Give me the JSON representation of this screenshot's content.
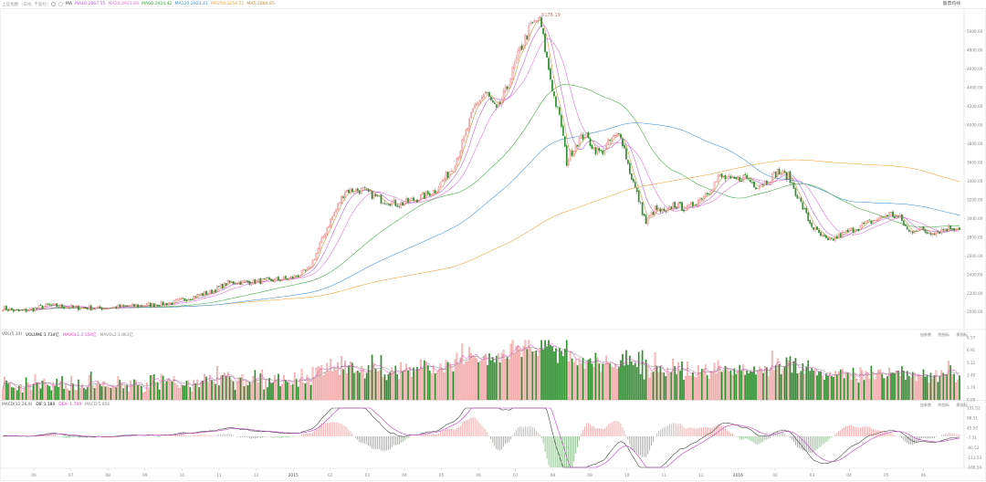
{
  "header": {
    "title": "上证指数",
    "adjust": "(日线, 不复权)",
    "ma_label": "MA",
    "ma_items": [
      {
        "label": "MA10:2867.55",
        "color": "#b65ad6"
      },
      {
        "label": "MA20:2923.69",
        "color": "#e46ad0"
      },
      {
        "label": "MA60:2924.42",
        "color": "#39a640"
      },
      {
        "label": "MA120:2923.41",
        "color": "#3c8fd8"
      },
      {
        "label": "MA250:3258.51",
        "color": "#f0a030"
      },
      {
        "label": "MA5:2880.85",
        "color": "#c88a30"
      }
    ],
    "period_button": "股票均线",
    "peak_label": "5178.19"
  },
  "volume": {
    "legend": [
      {
        "label": "VOL(5,10)",
        "color": "#666666"
      },
      {
        "label": "VOLUME:1.734亿",
        "color": "#222222"
      },
      {
        "label": "MAVOL1:2.150亿",
        "color": "#e040c0"
      },
      {
        "label": "MAVOL2:1.861亿",
        "color": "#8a8a8a"
      }
    ],
    "controls": [
      "加参数",
      "隐指标",
      "换指标"
    ],
    "y_ticks": [
      "8.57",
      "6.91",
      "5.11",
      "3.40",
      "1.70",
      "0.00"
    ]
  },
  "macd": {
    "legend": [
      {
        "label": "MACD(12,26,9)",
        "color": "#666666"
      },
      {
        "label": "DIF:1.180",
        "color": "#222222"
      },
      {
        "label": "DEA:-1.749",
        "color": "#e040c0"
      },
      {
        "label": "MACD:5.856",
        "color": "#8a8a8a"
      }
    ],
    "controls": [
      "加参数",
      "隐指标",
      "换指标"
    ],
    "y_ticks": [
      "151.52",
      "98.51",
      "45.50",
      "-7.51",
      "-60.52",
      "-113.53",
      "-166.54"
    ]
  },
  "price_axis": {
    "ticks": [
      "5000.00",
      "4800.00",
      "4600.00",
      "4400.00",
      "4200.00",
      "4000.00",
      "3800.00",
      "3600.00",
      "3400.00",
      "3200.00",
      "3000.00",
      "2800.00",
      "2600.00",
      "2400.00",
      "2200.00",
      "2000.00"
    ]
  },
  "x_axis": {
    "labels": [
      "06",
      "07",
      "08",
      "09",
      "10",
      "11",
      "12",
      "2015",
      "02",
      "03",
      "04",
      "05",
      "06",
      "07",
      "08",
      "09",
      "10",
      "11",
      "12",
      "2016",
      "02",
      "03",
      "04",
      "05",
      "06"
    ]
  },
  "colors": {
    "up": "#e36b6b",
    "up_fill": "#f8c6c6",
    "down": "#2f8f2f",
    "ma5": "#c88a30",
    "ma10": "#b65ad6",
    "ma20": "#e46ad0",
    "ma60": "#39a640",
    "ma120": "#3c8fd8",
    "ma250": "#f0a030",
    "dif": "#444444",
    "dea": "#c040c0"
  },
  "chart_data": {
    "type": "candlestick",
    "x_range": [
      "2014-05",
      "2016-06"
    ],
    "price_range": [
      1850,
      5200
    ],
    "peak": 5178.19,
    "anchors": [
      [
        0,
        2040
      ],
      [
        8,
        2005
      ],
      [
        15,
        2020
      ],
      [
        25,
        2070
      ],
      [
        40,
        2045
      ],
      [
        55,
        2040
      ],
      [
        70,
        2060
      ],
      [
        85,
        2080
      ],
      [
        95,
        2100
      ],
      [
        105,
        2160
      ],
      [
        115,
        2210
      ],
      [
        125,
        2310
      ],
      [
        135,
        2320
      ],
      [
        145,
        2330
      ],
      [
        160,
        2360
      ],
      [
        170,
        2450
      ],
      [
        180,
        2900
      ],
      [
        190,
        3300
      ],
      [
        200,
        3300
      ],
      [
        210,
        3200
      ],
      [
        220,
        3150
      ],
      [
        230,
        3210
      ],
      [
        240,
        3300
      ],
      [
        250,
        3550
      ],
      [
        255,
        3800
      ],
      [
        262,
        4200
      ],
      [
        268,
        4350
      ],
      [
        274,
        4150
      ],
      [
        280,
        4400
      ],
      [
        287,
        4800
      ],
      [
        293,
        5050
      ],
      [
        298,
        5150
      ],
      [
        302,
        4700
      ],
      [
        306,
        4300
      ],
      [
        310,
        4000
      ],
      [
        313,
        3600
      ],
      [
        318,
        3800
      ],
      [
        323,
        3900
      ],
      [
        328,
        3750
      ],
      [
        332,
        3700
      ],
      [
        338,
        3850
      ],
      [
        343,
        3900
      ],
      [
        348,
        3500
      ],
      [
        353,
        3200
      ],
      [
        357,
        2950
      ],
      [
        362,
        3100
      ],
      [
        368,
        3050
      ],
      [
        372,
        3150
      ],
      [
        380,
        3100
      ],
      [
        386,
        3200
      ],
      [
        392,
        3300
      ],
      [
        398,
        3450
      ],
      [
        405,
        3400
      ],
      [
        412,
        3450
      ],
      [
        418,
        3350
      ],
      [
        424,
        3400
      ],
      [
        430,
        3500
      ],
      [
        436,
        3450
      ],
      [
        442,
        3200
      ],
      [
        448,
        2950
      ],
      [
        452,
        2850
      ],
      [
        458,
        2750
      ],
      [
        463,
        2800
      ],
      [
        468,
        2850
      ],
      [
        474,
        2900
      ],
      [
        480,
        2950
      ],
      [
        486,
        3000
      ],
      [
        492,
        3050
      ],
      [
        498,
        3000
      ],
      [
        503,
        2850
      ],
      [
        508,
        2900
      ],
      [
        513,
        2850
      ],
      [
        520,
        2870
      ],
      [
        525,
        2900
      ],
      [
        531,
        2900
      ]
    ],
    "volume_range": [
      0,
      8.57
    ],
    "macd_range": [
      -166.54,
      151.52
    ],
    "series": [
      {
        "name": "MA5"
      },
      {
        "name": "MA10"
      },
      {
        "name": "MA20"
      },
      {
        "name": "MA60"
      },
      {
        "name": "MA120"
      },
      {
        "name": "MA250"
      }
    ]
  }
}
